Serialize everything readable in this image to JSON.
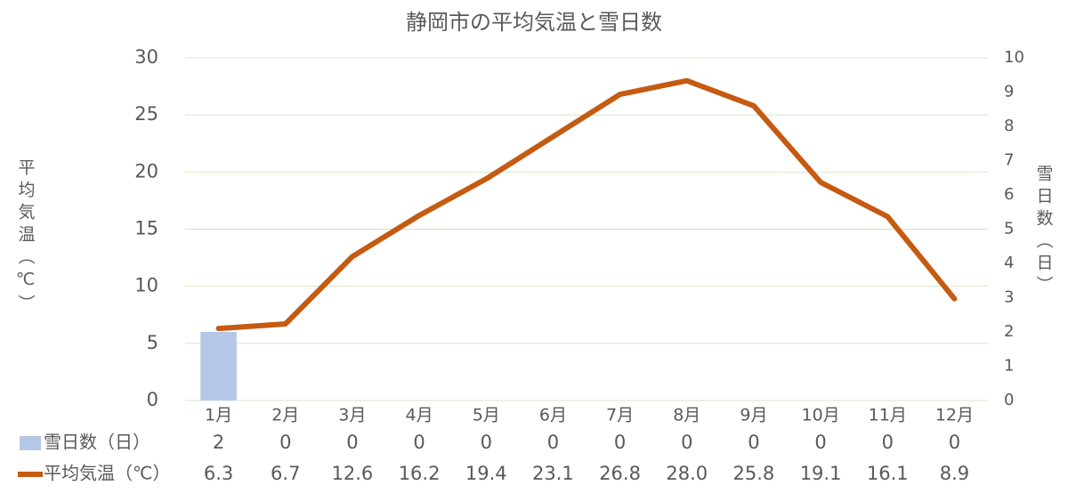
{
  "chart_data": {
    "type": "bar-line",
    "title": "静岡市の平均気温と雪日数",
    "y_label": "平均気温（℃）",
    "y2_label": "雪日数（日）",
    "categories": [
      "1月",
      "2月",
      "3月",
      "4月",
      "5月",
      "6月",
      "7月",
      "8月",
      "9月",
      "10月",
      "11月",
      "12月"
    ],
    "series": [
      {
        "name": "雪日数（日）",
        "type": "bar",
        "axis": "y2",
        "color": "#b4c7e7",
        "values": [
          2,
          0,
          0,
          0,
          0,
          0,
          0,
          0,
          0,
          0,
          0,
          0
        ]
      },
      {
        "name": "平均気温（℃）",
        "type": "line",
        "axis": "y",
        "color": "#c55a11",
        "values": [
          6.3,
          6.7,
          12.6,
          16.2,
          19.4,
          23.1,
          26.8,
          28.0,
          25.8,
          19.1,
          16.1,
          8.9
        ],
        "value_labels": [
          "6.3",
          "6.7",
          "12.6",
          "16.2",
          "19.4",
          "23.1",
          "26.8",
          "28.0",
          "25.8",
          "19.1",
          "16.1",
          "8.9"
        ]
      }
    ],
    "ylim": [
      0,
      30
    ],
    "yticks": [
      0,
      5,
      10,
      15,
      20,
      25,
      30
    ],
    "y2lim": [
      0,
      10
    ],
    "y2ticks": [
      0,
      1,
      2,
      3,
      4,
      5,
      6,
      7,
      8,
      9,
      10
    ],
    "grid": true,
    "data_table": true
  }
}
